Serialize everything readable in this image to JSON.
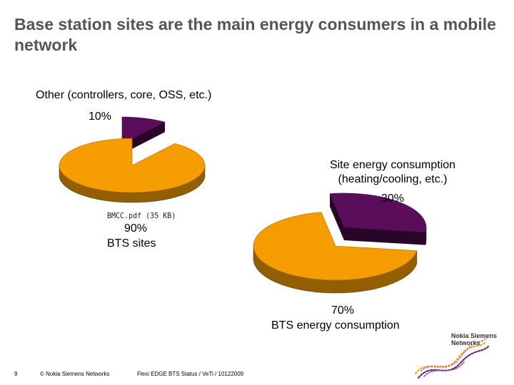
{
  "slide": {
    "title": "Base station sites are the main energy consumers in a mobile network",
    "page_number": "9",
    "copyright": "© Nokia Siemens Networks",
    "doc_ref": "Flexi EDGE BTS Status / VeTi / 10122009",
    "embedded_file": "BMCC.pdf (35 KB)"
  },
  "logo": {
    "text": "Nokia Siemens\nNetworks",
    "colors": [
      "#6a1b6a",
      "#f5a000",
      "#c0399a"
    ]
  },
  "chart_data": [
    {
      "type": "pie",
      "slices": [
        {
          "label": "Other (controllers, core, OSS, etc.)",
          "value": 10,
          "value_label": "10%",
          "color": "#5a0d5a"
        },
        {
          "label": "BTS sites",
          "value": 90,
          "value_label": "90%",
          "color": "#f59c00"
        }
      ],
      "title": ""
    },
    {
      "type": "pie",
      "slices": [
        {
          "label": "Site energy consumption (heating/cooling, etc.)",
          "value": 30,
          "value_label": "30%",
          "color": "#5a0d5a"
        },
        {
          "label": "BTS energy consumption",
          "value": 70,
          "value_label": "70%",
          "color": "#f59c00"
        }
      ],
      "title": ""
    }
  ]
}
